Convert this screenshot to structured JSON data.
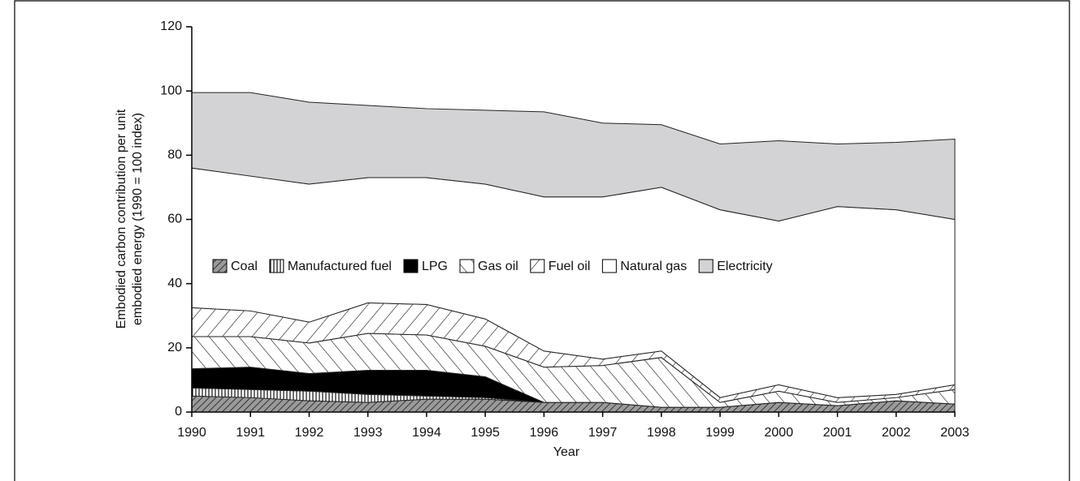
{
  "chart_data": {
    "type": "stacked_area",
    "xlabel": "Year",
    "ylabel": [
      "Embodied carbon contribution per unit",
      "embodied energy (1990 = 100 index)"
    ],
    "categories": [
      "1990",
      "1991",
      "1992",
      "1993",
      "1994",
      "1995",
      "1996",
      "1997",
      "1998",
      "1999",
      "2000",
      "2001",
      "2002",
      "2003"
    ],
    "ylim": [
      0,
      120
    ],
    "yticks": [
      0,
      20,
      40,
      60,
      80,
      100,
      120
    ],
    "series": [
      {
        "name": "Coal",
        "color": "#8c8c8c",
        "pattern": "coal",
        "values": [
          5,
          4.5,
          3.5,
          3,
          4,
          4,
          3,
          3,
          1.5,
          1.5,
          3,
          2,
          3.5,
          2.5
        ]
      },
      {
        "name": "Manufactured fuel",
        "color": "#ffffff",
        "pattern": "vertical",
        "values": [
          2.5,
          2.5,
          3,
          2.5,
          1,
          0.5,
          0,
          0,
          0,
          0,
          0,
          0,
          0,
          0
        ]
      },
      {
        "name": "LPG",
        "color": "#000000",
        "pattern": "solid",
        "values": [
          6,
          7,
          5.5,
          7.5,
          8,
          6.5,
          0,
          0,
          0,
          0,
          0,
          0,
          0,
          0
        ]
      },
      {
        "name": "Gas oil",
        "color": "#ffffff",
        "pattern": "backslash",
        "values": [
          10,
          9.5,
          9.5,
          11.5,
          11,
          9.5,
          11,
          11.5,
          15.5,
          1.5,
          3.5,
          1,
          1,
          4.5
        ]
      },
      {
        "name": "Fuel oil",
        "color": "#ffffff",
        "pattern": "slash",
        "values": [
          9,
          8,
          6.5,
          9.5,
          9.5,
          8.5,
          5,
          2,
          2,
          1.5,
          2,
          1.5,
          1,
          1.5
        ]
      },
      {
        "name": "Natural gas",
        "color": "#ffffff",
        "pattern": "solid",
        "values": [
          43.5,
          42,
          43,
          39,
          39.5,
          42,
          48,
          50.5,
          51,
          58.5,
          51,
          59.5,
          57.5,
          51.5
        ]
      },
      {
        "name": "Electricity",
        "color": "#d3d3d5",
        "pattern": "solid",
        "values": [
          23.5,
          26,
          25.5,
          22.5,
          21.5,
          23,
          26.5,
          23,
          19.5,
          20.5,
          25,
          19.5,
          21,
          25
        ]
      }
    ]
  }
}
